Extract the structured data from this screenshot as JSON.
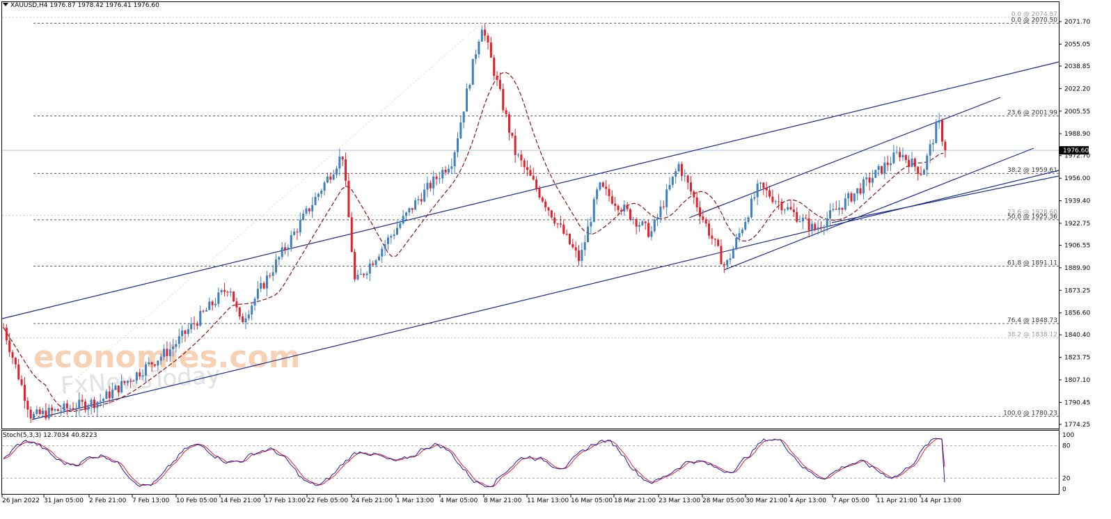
{
  "header": {
    "symbol": "XAUUSD,H4",
    "ohlc": "1976.87 1978.42 1976.41 1976.60"
  },
  "stoch": {
    "label": "Stoch(5,3,3) 12.7034 40.8223",
    "scale_labels": [
      "100",
      "80",
      "20",
      "0"
    ]
  },
  "current_price": "1976.60",
  "price_labels": [
    "2071.70",
    "2055.05",
    "2038.85",
    "2022.20",
    "2005.55",
    "1988.90",
    "1972.70",
    "1956.00",
    "1939.40",
    "1922.75",
    "1906.55",
    "1889.90",
    "1873.25",
    "1856.60",
    "1840.40",
    "1823.75",
    "1807.10",
    "1790.45",
    "1774.25"
  ],
  "time_labels": [
    "26 Jan 2022",
    "31 Jan 05:00",
    "2 Feb 21:00",
    "7 Feb 13:00",
    "10 Feb 05:00",
    "14 Feb 21:00",
    "17 Feb 13:00",
    "22 Feb 05:00",
    "24 Feb 21:00",
    "1 Mar 13:00",
    "4 Mar 05:00",
    "8 Mar 21:00",
    "11 Mar 13:00",
    "16 Mar 05:00",
    "18 Mar 21:00",
    "23 Mar 13:00",
    "28 Mar 05:00",
    "30 Mar 21:00",
    "4 Apr 13:00",
    "7 Apr 05:00",
    "11 Apr 21:00",
    "14 Apr 13:00"
  ],
  "fib_labels": [
    {
      "text": "0.0 @ 2074.87",
      "faint": true
    },
    {
      "text": "0.0 @ 2070.50",
      "faint": false
    },
    {
      "text": "23.6 @ 2001.99",
      "faint": false
    },
    {
      "text": "38.2 @ 1959.61",
      "faint": false
    },
    {
      "text": "23.6 @ 1928.60",
      "faint": true
    },
    {
      "text": "50.0 @ 1925.36",
      "faint": false
    },
    {
      "text": "61.8 @ 1891.11",
      "faint": false
    },
    {
      "text": "76.4 @ 1848.73",
      "faint": false
    },
    {
      "text": "38.2 @ 1838.12",
      "faint": true
    },
    {
      "text": "100.0 @ 1780.23",
      "faint": false
    }
  ],
  "watermarks": {
    "primary": "economies.com",
    "secondary": "FxNewsToday"
  },
  "colors": {
    "bull": "#3d7fc1",
    "bear": "#e0202a",
    "trendline": "#1c2a8c",
    "ma": "#8b1010",
    "stoch_main": "#1a1aa0",
    "stoch_signal": "#e0202a",
    "current_line": "#a9c8e8"
  },
  "chart_data": {
    "type": "candlestick",
    "symbol": "XAUUSD",
    "timeframe": "H4",
    "ylim": [
      1774.25,
      2071.7
    ],
    "last_price": 1976.6,
    "swing_points": [
      {
        "time": "26 Jan 2022",
        "price": 1849
      },
      {
        "time": "28 Jan",
        "price": 1780
      },
      {
        "time": "3 Feb",
        "price": 1792
      },
      {
        "time": "8 Feb",
        "price": 1830
      },
      {
        "time": "14 Feb",
        "price": 1877
      },
      {
        "time": "15 Feb",
        "price": 1849
      },
      {
        "time": "18 Feb",
        "price": 1905
      },
      {
        "time": "24 Feb",
        "price": 1974
      },
      {
        "time": "24 Feb",
        "price": 1878
      },
      {
        "time": "1 Mar",
        "price": 1940
      },
      {
        "time": "4 Mar",
        "price": 1970
      },
      {
        "time": "8 Mar",
        "price": 2070
      },
      {
        "time": "10 Mar",
        "price": 1975
      },
      {
        "time": "16 Mar",
        "price": 1895
      },
      {
        "time": "17 Mar",
        "price": 1950
      },
      {
        "time": "21 Mar",
        "price": 1915
      },
      {
        "time": "24 Mar",
        "price": 1966
      },
      {
        "time": "29 Mar",
        "price": 1890
      },
      {
        "time": "30 Mar",
        "price": 1950
      },
      {
        "time": "5 Apr",
        "price": 1918
      },
      {
        "time": "11 Apr",
        "price": 1975
      },
      {
        "time": "13 Apr",
        "price": 1960
      },
      {
        "time": "14 Apr",
        "price": 1998
      },
      {
        "time": "15 Apr",
        "price": 1976.6
      }
    ],
    "fibonacci_levels": [
      {
        "ratio": 0.0,
        "price": 2074.87
      },
      {
        "ratio": 0.0,
        "price": 2070.5
      },
      {
        "ratio": 23.6,
        "price": 2001.99
      },
      {
        "ratio": 38.2,
        "price": 1959.61
      },
      {
        "ratio": 23.6,
        "price": 1928.6
      },
      {
        "ratio": 50.0,
        "price": 1925.36
      },
      {
        "ratio": 61.8,
        "price": 1891.11
      },
      {
        "ratio": 76.4,
        "price": 1848.73
      },
      {
        "ratio": 38.2,
        "price": 1838.12
      },
      {
        "ratio": 100.0,
        "price": 1780.23
      }
    ],
    "stochastic": {
      "params": "5,3,3",
      "main": 12.7034,
      "signal": 40.8223,
      "levels": [
        80,
        20
      ]
    }
  }
}
